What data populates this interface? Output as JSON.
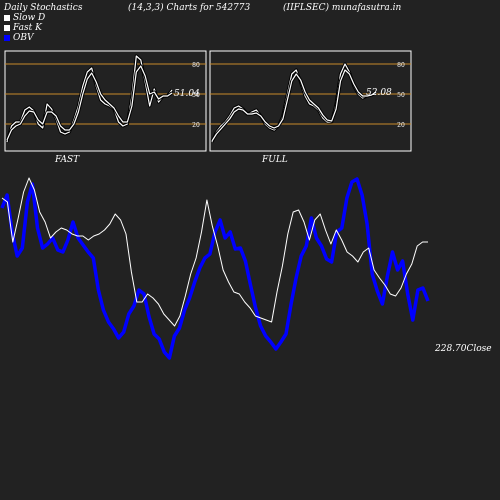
{
  "header": {
    "left": "Daily Stochastics",
    "center": "(14,3,3) Charts for 542773",
    "right": "(IIFLSEC) munafasutra.in"
  },
  "legend": [
    {
      "label": "Slow  D",
      "color": "#ffffff"
    },
    {
      "label": "Fast K",
      "color": "#ffffff"
    },
    {
      "label": "OBV",
      "color": "#0000ff"
    }
  ],
  "colors": {
    "background": "#222222",
    "panel_border": "#ffffff",
    "level_line": "#c88a2a",
    "line_white": "#ffffff",
    "obv_blue": "#0000ff"
  },
  "chart_data": [
    {
      "type": "line",
      "panel": "FAST",
      "label": "FAST",
      "value_label": "51.04",
      "ylim": [
        0,
        100
      ],
      "levels": [
        80,
        50,
        20
      ],
      "ytick_labels": [
        "80",
        "50",
        "20"
      ],
      "series": [
        {
          "name": "Fast K",
          "values": [
            2,
            18,
            22,
            22,
            34,
            37,
            33,
            20,
            16,
            40,
            35,
            25,
            12,
            10,
            12,
            24,
            38,
            58,
            72,
            76,
            58,
            44,
            40,
            38,
            35,
            22,
            18,
            20,
            48,
            88,
            84,
            62,
            38,
            55,
            42,
            48,
            48,
            54
          ]
        },
        {
          "name": "Slow  D",
          "values": [
            4,
            14,
            18,
            20,
            28,
            33,
            32,
            24,
            20,
            32,
            32,
            28,
            18,
            14,
            14,
            20,
            32,
            50,
            65,
            71,
            62,
            50,
            44,
            40,
            36,
            28,
            22,
            22,
            38,
            72,
            78,
            68,
            50,
            52,
            45,
            48,
            48,
            51
          ]
        }
      ]
    },
    {
      "type": "line",
      "panel": "FULL",
      "label": "FULL",
      "value_label": "52.08",
      "ylim": [
        0,
        100
      ],
      "levels": [
        80,
        50,
        20
      ],
      "ytick_labels": [
        "80",
        "50",
        "20"
      ],
      "series": [
        {
          "name": "Fast K",
          "values": [
            2,
            12,
            18,
            22,
            28,
            36,
            38,
            35,
            30,
            32,
            34,
            28,
            20,
            16,
            14,
            18,
            28,
            50,
            70,
            74,
            62,
            48,
            40,
            38,
            34,
            26,
            22,
            22,
            40,
            70,
            80,
            72,
            58,
            50,
            46,
            48,
            49,
            52
          ]
        },
        {
          "name": "Slow  D",
          "values": [
            3,
            10,
            15,
            20,
            25,
            32,
            35,
            34,
            30,
            30,
            31,
            28,
            22,
            18,
            16,
            18,
            25,
            44,
            63,
            70,
            64,
            52,
            44,
            40,
            36,
            29,
            24,
            23,
            35,
            63,
            74,
            70,
            60,
            52,
            48,
            48,
            49,
            52
          ]
        }
      ]
    },
    {
      "type": "line",
      "panel": "OBV",
      "price_label": "228.70",
      "price_suffix": "Close",
      "series": [
        {
          "name": "OBV",
          "values": [
            292,
            305,
            268,
            244,
            252,
            298,
            316,
            272,
            252,
            256,
            262,
            250,
            248,
            260,
            278,
            262,
            255,
            248,
            242,
            210,
            190,
            178,
            171,
            162,
            168,
            186,
            194,
            210,
            206,
            183,
            166,
            161,
            148,
            142,
            164,
            172,
            190,
            202,
            218,
            232,
            242,
            246,
            268,
            280,
            262,
            268,
            251,
            252,
            239,
            215,
            192,
            174,
            164,
            158,
            151,
            158,
            166,
            196,
            222,
            244,
            254,
            282,
            262,
            254,
            241,
            238,
            268,
            272,
            302,
            318,
            321,
            305,
            276,
            226,
            209,
            196,
            224,
            248,
            230,
            239,
            206,
            180,
            210,
            212,
            199
          ]
        },
        {
          "name": "Close",
          "values": [
            192,
            188,
            148,
            172,
            198,
            212,
            200,
            178,
            168,
            152,
            158,
            162,
            160,
            156,
            154,
            154,
            150,
            154,
            156,
            160,
            166,
            176,
            170,
            156,
            118,
            88,
            88,
            96,
            92,
            86,
            76,
            70,
            64,
            74,
            94,
            116,
            132,
            158,
            190,
            164,
            144,
            120,
            108,
            98,
            96,
            88,
            82,
            74,
            72,
            70,
            68,
            98,
            124,
            156,
            178,
            180,
            168,
            150,
            170,
            176,
            160,
            146,
            160,
            150,
            138,
            134,
            128,
            138,
            142,
            120,
            112,
            105,
            96,
            94,
            102,
            116,
            126,
            144,
            148,
            148
          ]
        }
      ]
    }
  ]
}
